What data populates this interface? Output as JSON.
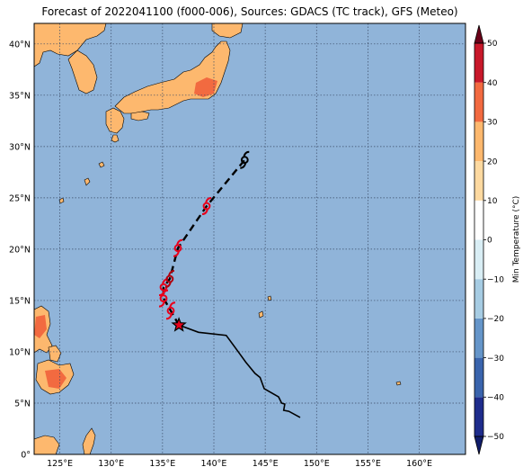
{
  "title": "Forecast of 2022041100 (f000-006), Sources: GDACS (TC track), GFS (Meteo)",
  "map": {
    "lon_range": [
      122.5,
      164.5
    ],
    "lat_range": [
      0,
      42
    ],
    "ocean_color": "#90b4d9",
    "land_color": "#fdb86e",
    "warm_land_color": "#f26a40",
    "lon_ticks": [
      {
        "value": 125,
        "label": "125°E"
      },
      {
        "value": 130,
        "label": "130°E"
      },
      {
        "value": 135,
        "label": "135°E"
      },
      {
        "value": 140,
        "label": "140°E"
      },
      {
        "value": 145,
        "label": "145°E"
      },
      {
        "value": 150,
        "label": "150°E"
      },
      {
        "value": 155,
        "label": "155°E"
      },
      {
        "value": 160,
        "label": "160°E"
      }
    ],
    "lat_ticks": [
      {
        "value": 0,
        "label": "0°"
      },
      {
        "value": 5,
        "label": "5°N"
      },
      {
        "value": 10,
        "label": "10°N"
      },
      {
        "value": 15,
        "label": "15°N"
      },
      {
        "value": 20,
        "label": "20°N"
      },
      {
        "value": 25,
        "label": "25°N"
      },
      {
        "value": 30,
        "label": "30°N"
      },
      {
        "value": 35,
        "label": "35°N"
      },
      {
        "value": 40,
        "label": "40°N"
      }
    ],
    "grid": true
  },
  "storm": {
    "current_position": [
      136.6,
      12.6
    ],
    "past_track": [
      [
        136.6,
        12.6
      ],
      [
        138.5,
        11.9
      ],
      [
        141.2,
        11.6
      ],
      [
        142.3,
        10.1
      ],
      [
        143.1,
        9.0
      ],
      [
        144.0,
        7.9
      ],
      [
        144.5,
        7.5
      ],
      [
        144.9,
        6.4
      ],
      [
        146.3,
        5.6
      ],
      [
        146.6,
        5.0
      ],
      [
        146.9,
        4.9
      ],
      [
        146.8,
        4.3
      ],
      [
        147.3,
        4.2
      ],
      [
        148.4,
        3.6
      ]
    ],
    "forecast_track": [
      [
        136.6,
        12.6
      ],
      [
        135.8,
        14.0
      ],
      [
        135.1,
        15.2
      ],
      [
        135.1,
        16.3
      ],
      [
        135.7,
        17.1
      ],
      [
        136.5,
        20.1
      ],
      [
        139.3,
        24.2
      ],
      [
        143.0,
        28.7
      ]
    ],
    "forecast_symbols": [
      {
        "pos": [
          135.8,
          14.0
        ],
        "color": "#e8001b"
      },
      {
        "pos": [
          135.1,
          15.2
        ],
        "color": "#e8001b"
      },
      {
        "pos": [
          135.1,
          16.3
        ],
        "color": "#e8001b"
      },
      {
        "pos": [
          135.7,
          17.1
        ],
        "color": "#b0000e"
      },
      {
        "pos": [
          136.5,
          20.1
        ],
        "color": "#e8001b"
      },
      {
        "pos": [
          139.3,
          24.2
        ],
        "color": "#e8001b"
      },
      {
        "pos": [
          143.0,
          28.7
        ],
        "color": "#000000"
      }
    ]
  },
  "colorbar": {
    "label": "Min Temperature (°C)",
    "min": -50,
    "max": 50,
    "ticks": [
      {
        "value": 50,
        "label": "50"
      },
      {
        "value": 40,
        "label": "40"
      },
      {
        "value": 30,
        "label": "30"
      },
      {
        "value": 20,
        "label": "20"
      },
      {
        "value": 10,
        "label": "10"
      },
      {
        "value": 0,
        "label": "0"
      },
      {
        "value": -10,
        "label": "−10"
      },
      {
        "value": -20,
        "label": "−20"
      },
      {
        "value": -30,
        "label": "−30"
      },
      {
        "value": -40,
        "label": "−40"
      },
      {
        "value": -50,
        "label": "−50"
      }
    ],
    "bands": [
      {
        "from": -50,
        "to": -40,
        "color": "#1e2c8c"
      },
      {
        "from": -40,
        "to": -30,
        "color": "#3a64ad"
      },
      {
        "from": -30,
        "to": -20,
        "color": "#6595c9"
      },
      {
        "from": -20,
        "to": -10,
        "color": "#a6cce3"
      },
      {
        "from": -10,
        "to": 0,
        "color": "#d9eef5"
      },
      {
        "from": 0,
        "to": 10,
        "color": "#ffffff"
      },
      {
        "from": 10,
        "to": 20,
        "color": "#fdd9a0"
      },
      {
        "from": 20,
        "to": 30,
        "color": "#fdb86e"
      },
      {
        "from": 30,
        "to": 40,
        "color": "#f26a40"
      },
      {
        "from": 40,
        "to": 50,
        "color": "#c8182a"
      }
    ],
    "extend_min_color": "#111d6b",
    "extend_max_color": "#6b0019"
  }
}
